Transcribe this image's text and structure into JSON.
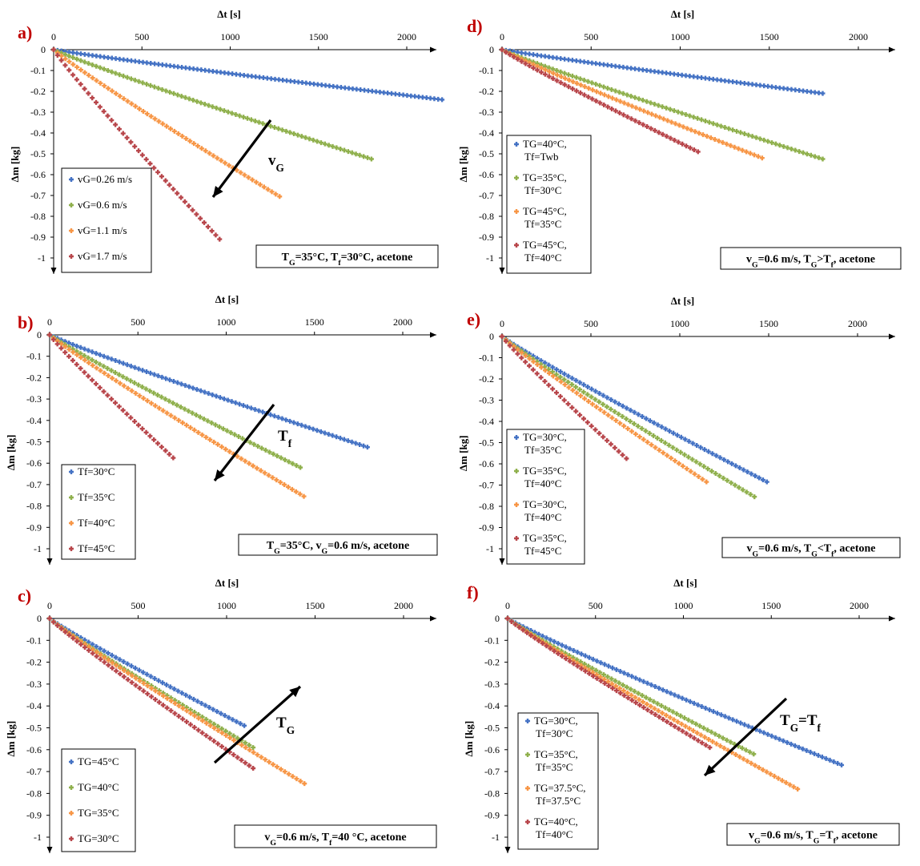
{
  "colors": {
    "blue": "#4472c4",
    "green": "#8fb04c",
    "orange": "#f79646",
    "red": "#b8464b",
    "panel_letter": "#c00000"
  },
  "x_axis_label": "Δt [s]",
  "y_axis_label": "Δm [kg]",
  "x_tick_labels": [
    "0",
    "500",
    "1000",
    "1500",
    "2000"
  ],
  "y_tick_labels": [
    "0",
    "-0.1",
    "-0.2",
    "-0.3",
    "-0.4",
    "-0.5",
    "-0.6",
    "-0.7",
    "-0.8",
    "-0.9",
    "-1"
  ],
  "chart_data": [
    {
      "type": "scatter",
      "panel": "a)",
      "xlabel": "Δt [s]",
      "ylabel": "Δm [kg]",
      "xlim": [
        0,
        2200
      ],
      "ylim": [
        -1.05,
        0
      ],
      "condition": {
        "pre": "T",
        "sub1": "G",
        "mid1": "=35°C, T",
        "sub2": "f",
        "post": "=30°C, acetone"
      },
      "arrow": {
        "label": "v",
        "sub": "G",
        "direction": "toward faster evaporation"
      },
      "series": [
        {
          "name": "vG=0.26 m/s",
          "color": "#4472c4",
          "x_end": 2200,
          "y_end": -0.24
        },
        {
          "name": "vG=0.6 m/s",
          "color": "#8fb04c",
          "x_end": 1800,
          "y_end": -0.525
        },
        {
          "name": "vG=1.1 m/s",
          "color": "#f79646",
          "x_end": 1280,
          "y_end": -0.705
        },
        {
          "name": "vG=1.7 m/s",
          "color": "#b8464b",
          "x_end": 940,
          "y_end": -0.91
        }
      ]
    },
    {
      "type": "scatter",
      "panel": "b)",
      "xlabel": "Δt [s]",
      "ylabel": "Δm [kg]",
      "xlim": [
        0,
        2200
      ],
      "ylim": [
        -1.05,
        0
      ],
      "condition": {
        "pre": "T",
        "sub1": "G",
        "mid1": "=35°C, v",
        "sub2": "G",
        "post": "=0.6 m/s, acetone"
      },
      "arrow": {
        "label": "T",
        "sub": "f",
        "direction": "toward faster evaporation"
      },
      "series": [
        {
          "name": "Tf=30°C",
          "color": "#4472c4",
          "x_end": 1800,
          "y_end": -0.525
        },
        {
          "name": "Tf=35°C",
          "color": "#8fb04c",
          "x_end": 1420,
          "y_end": -0.62
        },
        {
          "name": "Tf=40°C",
          "color": "#f79646",
          "x_end": 1440,
          "y_end": -0.755
        },
        {
          "name": "Tf=45°C",
          "color": "#b8464b",
          "x_end": 700,
          "y_end": -0.575
        }
      ]
    },
    {
      "type": "scatter",
      "panel": "c)",
      "xlabel": "Δt [s]",
      "ylabel": "Δm [kg]",
      "xlim": [
        0,
        2200
      ],
      "ylim": [
        -1.05,
        0
      ],
      "condition": {
        "pre": "v",
        "sub1": "G",
        "mid1": "=0.6 m/s, T",
        "sub2": "f",
        "post": "=40 °C, acetone"
      },
      "arrow": {
        "label": "T",
        "sub": "G",
        "direction": "toward slower evaporation"
      },
      "series": [
        {
          "name": "TG=45°C",
          "color": "#4472c4",
          "x_end": 1100,
          "y_end": -0.49
        },
        {
          "name": "TG=40°C",
          "color": "#8fb04c",
          "x_end": 1150,
          "y_end": -0.59
        },
        {
          "name": "TG=35°C",
          "color": "#f79646",
          "x_end": 1440,
          "y_end": -0.755
        },
        {
          "name": "TG=30°C",
          "color": "#b8464b",
          "x_end": 1150,
          "y_end": -0.685
        }
      ]
    },
    {
      "type": "scatter",
      "panel": "d)",
      "xlabel": "Δt [s]",
      "ylabel": "Δm [kg]",
      "xlim": [
        0,
        2200
      ],
      "ylim": [
        -1.05,
        0
      ],
      "condition": {
        "pre": "v",
        "sub1": "G",
        "mid1": "=0.6 m/s, T",
        "sub2": "G",
        "post": ">T",
        "sub3": "f",
        "post2": ", acetone"
      },
      "series": [
        {
          "name": "TG=40°C, Tf=Twb",
          "color": "#4472c4",
          "x_end": 1800,
          "y_end": -0.21
        },
        {
          "name": "TG=35°C, Tf=30°C",
          "color": "#8fb04c",
          "x_end": 1800,
          "y_end": -0.525
        },
        {
          "name": "TG=45°C, Tf=35°C",
          "color": "#f79646",
          "x_end": 1460,
          "y_end": -0.52
        },
        {
          "name": "TG=45°C, Tf=40°C",
          "color": "#b8464b",
          "x_end": 1100,
          "y_end": -0.49
        }
      ]
    },
    {
      "type": "scatter",
      "panel": "e)",
      "xlabel": "Δt [s]",
      "ylabel": "Δm [kg]",
      "xlim": [
        0,
        2200
      ],
      "ylim": [
        -1.05,
        0
      ],
      "condition": {
        "pre": "v",
        "sub1": "G",
        "mid1": "=0.6 m/s, T",
        "sub2": "G",
        "post": "<T",
        "sub3": "f",
        "post2": ", acetone"
      },
      "series": [
        {
          "name": "TG=30°C, Tf=35°C",
          "color": "#4472c4",
          "x_end": 1490,
          "y_end": -0.685
        },
        {
          "name": "TG=35°C, Tf=40°C",
          "color": "#8fb04c",
          "x_end": 1420,
          "y_end": -0.755
        },
        {
          "name": "TG=30°C, Tf=40°C",
          "color": "#f79646",
          "x_end": 1150,
          "y_end": -0.685
        },
        {
          "name": "TG=35°C, Tf=45°C",
          "color": "#b8464b",
          "x_end": 700,
          "y_end": -0.575
        }
      ]
    },
    {
      "type": "scatter",
      "panel": "f)",
      "xlabel": "Δt [s]",
      "ylabel": "Δm [kg]",
      "xlim": [
        0,
        2200
      ],
      "ylim": [
        -1.05,
        0
      ],
      "condition": {
        "pre": "v",
        "sub1": "G",
        "mid1": "=0.6 m/s, T",
        "sub2": "G",
        "post": "=T",
        "sub3": "f",
        "post2": ", acetone"
      },
      "arrow": {
        "label": "T",
        "sub": "G",
        "label2": "=T",
        "sub2": "f",
        "direction": "toward faster evaporation"
      },
      "series": [
        {
          "name": "TG=30°C, Tf=30°C",
          "color": "#4472c4",
          "x_end": 1900,
          "y_end": -0.67
        },
        {
          "name": "TG=35°C, Tf=35°C",
          "color": "#8fb04c",
          "x_end": 1400,
          "y_end": -0.62
        },
        {
          "name": "TG=37.5°C, Tf=37.5°C",
          "color": "#f79646",
          "x_end": 1650,
          "y_end": -0.78
        },
        {
          "name": "TG=40°C, Tf=40°C",
          "color": "#b8464b",
          "x_end": 1150,
          "y_end": -0.59
        }
      ]
    }
  ]
}
